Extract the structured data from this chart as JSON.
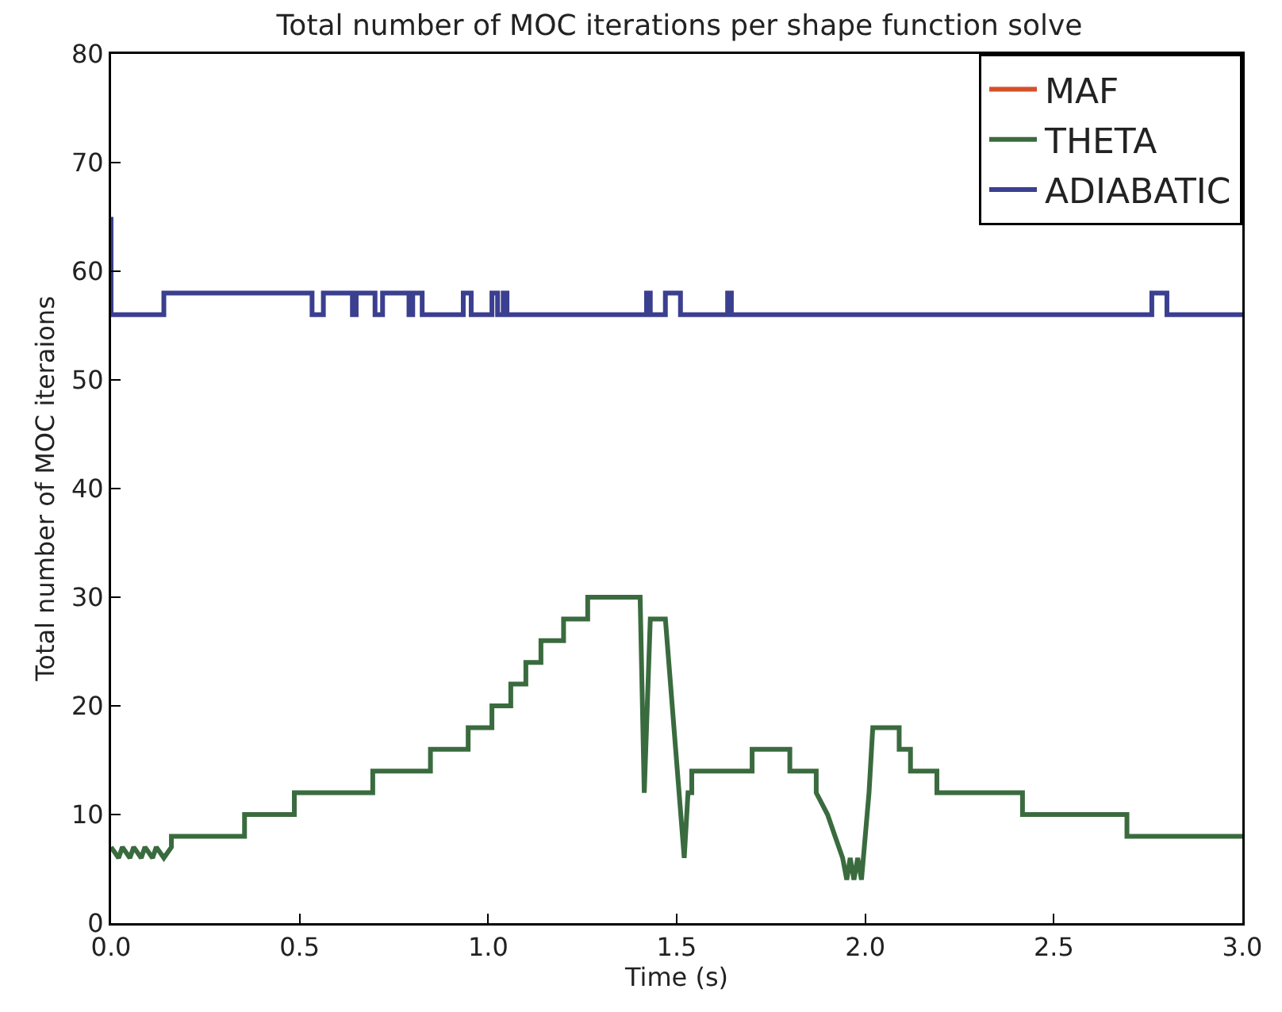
{
  "chart_data": {
    "type": "line",
    "title": "Total number of MOC iterations per shape function solve",
    "xlabel": "Time (s)",
    "ylabel": "Total number of MOC iteraions",
    "xlim": [
      0,
      3
    ],
    "xticks": [
      {
        "value": 0,
        "label": "0.0"
      },
      {
        "value": 0.5,
        "label": "0.5"
      },
      {
        "value": 1,
        "label": "1.0"
      },
      {
        "value": 1.5,
        "label": "1.5"
      },
      {
        "value": 2,
        "label": "2.0"
      },
      {
        "value": 2.5,
        "label": "2.5"
      },
      {
        "value": 3,
        "label": "3.0"
      }
    ],
    "ylim": [
      0,
      80
    ],
    "yticks": [
      0,
      10,
      20,
      30,
      40,
      50,
      60,
      70,
      80
    ],
    "grid": false,
    "legend": "top right",
    "line_style": "solid",
    "marker": "none",
    "series": [
      {
        "name": "MAF",
        "color": "#d6502a"
      },
      {
        "name": "THETA",
        "color": "#3a6b3f",
        "x": [
          0,
          0.02,
          0.03,
          0.05,
          0.06,
          0.08,
          0.09,
          0.11,
          0.12,
          0.14,
          0.16,
          0.16,
          0.354,
          0.354,
          0.486,
          0.486,
          0.694,
          0.694,
          0.847,
          0.847,
          0.947,
          0.947,
          1.01,
          1.01,
          1.06,
          1.06,
          1.1,
          1.1,
          1.14,
          1.14,
          1.2,
          1.2,
          1.264,
          1.264,
          1.403,
          1.414,
          1.43,
          1.47,
          1.52,
          1.53,
          1.54,
          1.54,
          1.7,
          1.7,
          1.8,
          1.8,
          1.87,
          1.87,
          1.9,
          1.92,
          1.94,
          1.951,
          1.96,
          1.97,
          1.98,
          1.99,
          2.0,
          2.01,
          2.02,
          2.09,
          2.09,
          2.12,
          2.12,
          2.19,
          2.19,
          2.417,
          2.417,
          2.694,
          2.694,
          3.0
        ],
        "values": [
          7,
          6,
          7,
          6,
          7,
          6,
          7,
          6,
          7,
          6,
          7,
          8,
          8,
          10,
          10,
          12,
          12,
          14,
          14,
          16,
          16,
          18,
          18,
          20,
          20,
          22,
          22,
          24,
          24,
          26,
          26,
          28,
          28,
          30,
          30,
          12,
          28,
          28,
          6,
          12,
          12,
          14,
          14,
          16,
          16,
          14,
          14,
          12,
          10,
          8,
          6,
          4,
          6,
          4,
          6,
          4,
          8,
          12,
          18,
          18,
          16,
          16,
          14,
          14,
          12,
          12,
          10,
          10,
          8,
          8
        ]
      },
      {
        "name": "ADIABATIC",
        "color": "#3b3f8f",
        "x": [
          0,
          0.0,
          0.14,
          0.14,
          0.533,
          0.533,
          0.563,
          0.563,
          0.64,
          0.64,
          0.65,
          0.65,
          0.7,
          0.7,
          0.72,
          0.72,
          0.79,
          0.79,
          0.8,
          0.8,
          0.825,
          0.825,
          0.934,
          0.934,
          0.955,
          0.955,
          1.01,
          1.01,
          1.025,
          1.025,
          1.04,
          1.04,
          1.05,
          1.05,
          1.42,
          1.42,
          1.43,
          1.43,
          1.47,
          1.47,
          1.51,
          1.51,
          1.635,
          1.635,
          1.645,
          1.645,
          2.76,
          2.76,
          2.8,
          2.8,
          3.0
        ],
        "values": [
          65,
          56,
          56,
          58,
          58,
          56,
          56,
          58,
          58,
          56,
          56,
          58,
          58,
          56,
          56,
          58,
          58,
          56,
          56,
          58,
          58,
          56,
          56,
          58,
          58,
          56,
          56,
          58,
          58,
          56,
          56,
          58,
          58,
          56,
          56,
          58,
          58,
          56,
          56,
          58,
          58,
          56,
          56,
          58,
          58,
          56,
          56,
          58,
          58,
          56,
          56
        ]
      }
    ]
  }
}
